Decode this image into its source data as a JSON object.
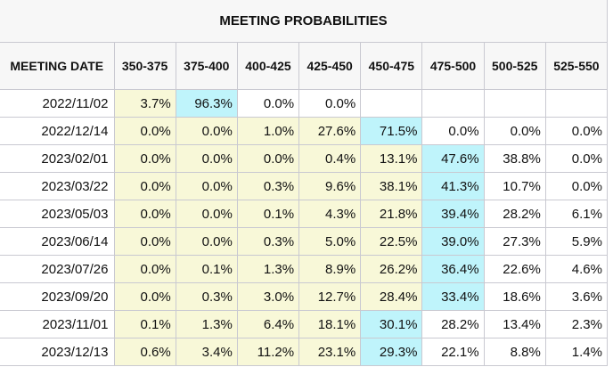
{
  "title": "MEETING PROBABILITIES",
  "columns": [
    "MEETING DATE",
    "350-375",
    "375-400",
    "400-425",
    "425-450",
    "450-475",
    "475-500",
    "500-525",
    "525-550"
  ],
  "colors": {
    "below_max": "#f8f8d8",
    "max": "#bff4fb"
  },
  "rows": [
    {
      "date": "2022/11/02",
      "values": [
        "3.7%",
        "96.3%",
        "0.0%",
        "0.0%",
        "",
        "",
        "",
        ""
      ]
    },
    {
      "date": "2022/12/14",
      "values": [
        "0.0%",
        "0.0%",
        "1.0%",
        "27.6%",
        "71.5%",
        "0.0%",
        "0.0%",
        "0.0%"
      ]
    },
    {
      "date": "2023/02/01",
      "values": [
        "0.0%",
        "0.0%",
        "0.0%",
        "0.4%",
        "13.1%",
        "47.6%",
        "38.8%",
        "0.0%"
      ]
    },
    {
      "date": "2023/03/22",
      "values": [
        "0.0%",
        "0.0%",
        "0.3%",
        "9.6%",
        "38.1%",
        "41.3%",
        "10.7%",
        "0.0%"
      ]
    },
    {
      "date": "2023/05/03",
      "values": [
        "0.0%",
        "0.0%",
        "0.1%",
        "4.3%",
        "21.8%",
        "39.4%",
        "28.2%",
        "6.1%"
      ]
    },
    {
      "date": "2023/06/14",
      "values": [
        "0.0%",
        "0.0%",
        "0.3%",
        "5.0%",
        "22.5%",
        "39.0%",
        "27.3%",
        "5.9%"
      ]
    },
    {
      "date": "2023/07/26",
      "values": [
        "0.0%",
        "0.1%",
        "1.3%",
        "8.9%",
        "26.2%",
        "36.4%",
        "22.6%",
        "4.6%"
      ]
    },
    {
      "date": "2023/09/20",
      "values": [
        "0.0%",
        "0.3%",
        "3.0%",
        "12.7%",
        "28.4%",
        "33.4%",
        "18.6%",
        "3.6%"
      ]
    },
    {
      "date": "2023/11/01",
      "values": [
        "0.1%",
        "1.3%",
        "6.4%",
        "18.1%",
        "30.1%",
        "28.2%",
        "13.4%",
        "2.3%"
      ]
    },
    {
      "date": "2023/12/13",
      "values": [
        "0.6%",
        "3.4%",
        "11.2%",
        "23.1%",
        "29.3%",
        "22.1%",
        "8.8%",
        "1.4%"
      ]
    }
  ]
}
